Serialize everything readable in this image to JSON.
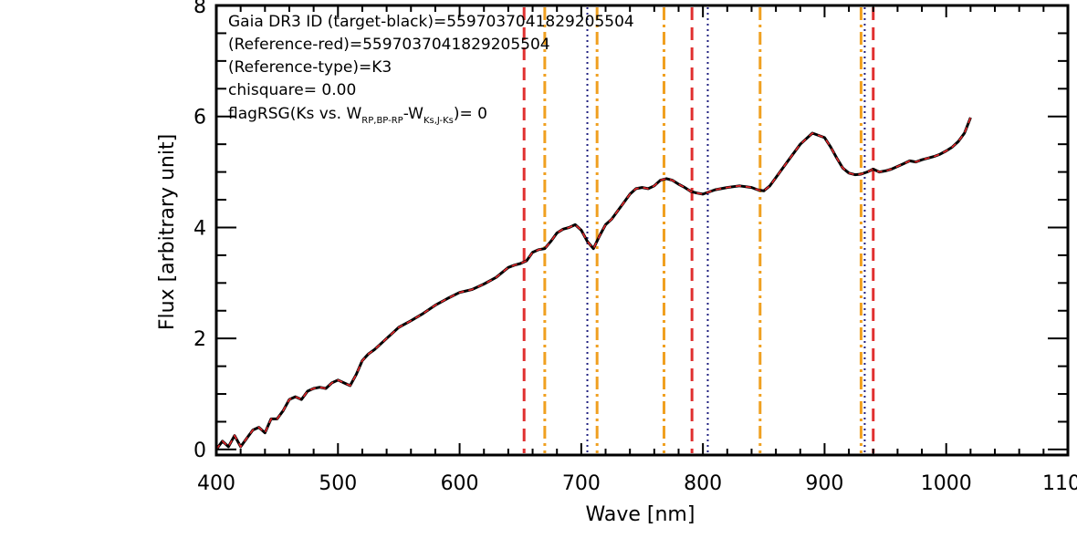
{
  "chart_data": {
    "type": "line",
    "xlabel": "Wave [nm]",
    "ylabel": "Flux [arbitrary unit]",
    "xlim": [
      400,
      1100
    ],
    "ylim": [
      -0.1,
      8
    ],
    "x_ticks": [
      "400",
      "500",
      "600",
      "700",
      "800",
      "900",
      "1000",
      "1100"
    ],
    "y_ticks": [
      "0",
      "2",
      "4",
      "6",
      "8"
    ],
    "grid": false,
    "annotations": [
      "Gaia DR3 ID (target-black)=5597037041829205504",
      "(Reference-red)=5597037041829205504",
      "(Reference-type)=K3",
      "chisquare= 0.00"
    ],
    "flag_annotation": {
      "prefix": "flagRSG(Ks vs. W",
      "sub1": "RP,BP-RP",
      "mid": "-W",
      "sub2": "Ks,J-Ks",
      "suffix": ")= 0"
    },
    "series": [
      {
        "role": "target",
        "color": "#000000",
        "style": "solid",
        "x": [
          400,
          405,
          410,
          415,
          420,
          425,
          430,
          435,
          440,
          445,
          450,
          455,
          460,
          465,
          470,
          475,
          480,
          485,
          490,
          495,
          500,
          505,
          510,
          515,
          520,
          525,
          530,
          540,
          550,
          560,
          570,
          580,
          590,
          600,
          610,
          620,
          630,
          640,
          645,
          650,
          655,
          660,
          665,
          670,
          675,
          680,
          685,
          690,
          695,
          700,
          705,
          710,
          715,
          720,
          725,
          730,
          735,
          740,
          745,
          750,
          755,
          760,
          765,
          770,
          775,
          780,
          785,
          790,
          795,
          800,
          810,
          820,
          830,
          840,
          845,
          850,
          855,
          860,
          870,
          880,
          890,
          900,
          905,
          910,
          915,
          920,
          925,
          930,
          935,
          940,
          945,
          950,
          955,
          960,
          965,
          970,
          975,
          980,
          985,
          990,
          995,
          1000,
          1005,
          1010,
          1015,
          1020
        ],
        "y": [
          0.0,
          0.15,
          0.05,
          0.25,
          0.05,
          0.2,
          0.35,
          0.4,
          0.3,
          0.55,
          0.55,
          0.7,
          0.9,
          0.95,
          0.9,
          1.05,
          1.1,
          1.12,
          1.1,
          1.2,
          1.25,
          1.2,
          1.15,
          1.35,
          1.6,
          1.72,
          1.8,
          2.0,
          2.2,
          2.32,
          2.45,
          2.6,
          2.72,
          2.83,
          2.88,
          2.98,
          3.1,
          3.28,
          3.32,
          3.35,
          3.4,
          3.55,
          3.6,
          3.62,
          3.75,
          3.9,
          3.97,
          4.0,
          4.05,
          3.95,
          3.75,
          3.62,
          3.85,
          4.05,
          4.15,
          4.3,
          4.45,
          4.6,
          4.7,
          4.72,
          4.7,
          4.75,
          4.85,
          4.88,
          4.85,
          4.78,
          4.72,
          4.65,
          4.62,
          4.6,
          4.68,
          4.72,
          4.75,
          4.72,
          4.68,
          4.66,
          4.75,
          4.9,
          5.2,
          5.5,
          5.7,
          5.62,
          5.45,
          5.25,
          5.07,
          4.98,
          4.95,
          4.96,
          5.0,
          5.05,
          5.0,
          5.02,
          5.05,
          5.1,
          5.15,
          5.2,
          5.18,
          5.22,
          5.25,
          5.28,
          5.32,
          5.38,
          5.45,
          5.55,
          5.7,
          5.98
        ]
      },
      {
        "role": "reference",
        "color": "#e8282c",
        "style": "dashed",
        "copy_of": "target"
      }
    ],
    "vlines": [
      {
        "x": 653,
        "color": "#e03030",
        "style": "dashed"
      },
      {
        "x": 670,
        "color": "#f0a020",
        "style": "dashdot"
      },
      {
        "x": 705,
        "color": "#202080",
        "style": "dotted"
      },
      {
        "x": 713,
        "color": "#f0a020",
        "style": "dashdot"
      },
      {
        "x": 768,
        "color": "#f0a020",
        "style": "dashdot"
      },
      {
        "x": 791,
        "color": "#e03030",
        "style": "dashed"
      },
      {
        "x": 804,
        "color": "#202080",
        "style": "dotted"
      },
      {
        "x": 847,
        "color": "#f0a020",
        "style": "dashdot"
      },
      {
        "x": 930,
        "color": "#f0a020",
        "style": "dashdot"
      },
      {
        "x": 933,
        "color": "#202080",
        "style": "dotted"
      },
      {
        "x": 940,
        "color": "#e03030",
        "style": "dashed"
      }
    ]
  }
}
